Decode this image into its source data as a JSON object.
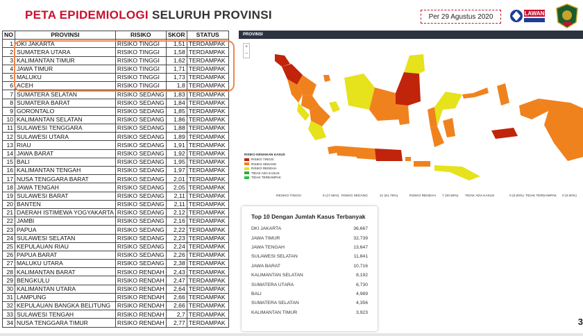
{
  "header": {
    "title_red": "PETA EPIDEMIOLOGI",
    "title_dark": "SELURUH PROVINSI",
    "date": "Per 29 Agustus 2020",
    "logo_text": "LAWAN"
  },
  "table": {
    "headers": [
      "NO",
      "PROVINSI",
      "RISIKO",
      "SKOR",
      "STATUS"
    ],
    "rows": [
      [
        "1",
        "DKI JAKARTA",
        "RISIKO TINGGI",
        "1,51",
        "TERDAMPAK"
      ],
      [
        "2",
        "SUMATERA UTARA",
        "RISIKO TINGGI",
        "1,58",
        "TERDAMPAK"
      ],
      [
        "3",
        "KALIMANTAN TIMUR",
        "RISIKO TINGGI",
        "1,62",
        "TERDAMPAK"
      ],
      [
        "4",
        "JAWA TIMUR",
        "RISIKO TINGGI",
        "1,71",
        "TERDAMPAK"
      ],
      [
        "5",
        "MALUKU",
        "RISIKO TINGGI",
        "1,73",
        "TERDAMPAK"
      ],
      [
        "6",
        "ACEH",
        "RISIKO TINGGI",
        "1,8",
        "TERDAMPAK"
      ],
      [
        "7",
        "SUMATERA SELATAN",
        "RISIKO SEDANG",
        "1,83",
        "TERDAMPAK"
      ],
      [
        "8",
        "SUMATERA BARAT",
        "RISIKO SEDANG",
        "1,84",
        "TERDAMPAK"
      ],
      [
        "9",
        "GORONTALO",
        "RISIKO SEDANG",
        "1,85",
        "TERDAMPAK"
      ],
      [
        "10",
        "KALIMANTAN SELATAN",
        "RISIKO SEDANG",
        "1,86",
        "TERDAMPAK"
      ],
      [
        "11",
        "SULAWESI TENGGARA",
        "RISIKO SEDANG",
        "1,88",
        "TERDAMPAK"
      ],
      [
        "12",
        "SULAWESI UTARA",
        "RISIKO SEDANG",
        "1,89",
        "TERDAMPAK"
      ],
      [
        "13",
        "RIAU",
        "RISIKO SEDANG",
        "1,91",
        "TERDAMPAK"
      ],
      [
        "14",
        "JAWA BARAT",
        "RISIKO SEDANG",
        "1,92",
        "TERDAMPAK"
      ],
      [
        "15",
        "BALI",
        "RISIKO SEDANG",
        "1,95",
        "TERDAMPAK"
      ],
      [
        "16",
        "KALIMANTAN TENGAH",
        "RISIKO SEDANG",
        "1,97",
        "TERDAMPAK"
      ],
      [
        "17",
        "NUSA TENGGARA BARAT",
        "RISIKO SEDANG",
        "2,01",
        "TERDAMPAK"
      ],
      [
        "18",
        "JAWA TENGAH",
        "RISIKO SEDANG",
        "2,05",
        "TERDAMPAK"
      ],
      [
        "19",
        "SULAWESI BARAT",
        "RISIKO SEDANG",
        "2,11",
        "TERDAMPAK"
      ],
      [
        "20",
        "BANTEN",
        "RISIKO SEDANG",
        "2,11",
        "TERDAMPAK"
      ],
      [
        "21",
        "DAERAH ISTIMEWA YOGYAKARTA",
        "RISIKO SEDANG",
        "2,12",
        "TERDAMPAK"
      ],
      [
        "22",
        "JAMBI",
        "RISIKO SEDANG",
        "2,16",
        "TERDAMPAK"
      ],
      [
        "23",
        "PAPUA",
        "RISIKO SEDANG",
        "2,22",
        "TERDAMPAK"
      ],
      [
        "24",
        "SULAWESI SELATAN",
        "RISIKO SEDANG",
        "2,23",
        "TERDAMPAK"
      ],
      [
        "25",
        "KEPULAUAN RIAU",
        "RISIKO SEDANG",
        "2,24",
        "TERDAMPAK"
      ],
      [
        "26",
        "PAPUA BARAT",
        "RISIKO SEDANG",
        "2,26",
        "TERDAMPAK"
      ],
      [
        "27",
        "MALUKU UTARA",
        "RISIKO SEDANG",
        "2,38",
        "TERDAMPAK"
      ],
      [
        "28",
        "KALIMANTAN BARAT",
        "RISIKO RENDAH",
        "2,43",
        "TERDAMPAK"
      ],
      [
        "29",
        "BENGKULU",
        "RISIKO RENDAH",
        "2,47",
        "TERDAMPAK"
      ],
      [
        "30",
        "KALIMANTAN UTARA",
        "RISIKO RENDAH",
        "2,64",
        "TERDAMPAK"
      ],
      [
        "31",
        "LAMPUNG",
        "RISIKO RENDAH",
        "2,66",
        "TERDAMPAK"
      ],
      [
        "32",
        "KEPULAUAN BANGKA BELITUNG",
        "RISIKO RENDAH",
        "2,66",
        "TERDAMPAK"
      ],
      [
        "33",
        "SULAWESI TENGAH",
        "RISIKO RENDAH",
        "2,7",
        "TERDAMPAK"
      ],
      [
        "34",
        "NUSA TENGGARA TIMUR",
        "RISIKO RENDAH",
        "2,77",
        "TERDAMPAK"
      ]
    ]
  },
  "map": {
    "header": "PROVINSI",
    "legend_title": "RISIKO KENAIKAN KASUS",
    "legend": [
      {
        "label": "RISIKO TINGGI",
        "color": "#c0240a"
      },
      {
        "label": "RISIKO SEDANG",
        "color": "#f0821e"
      },
      {
        "label": "RISIKO RENDAH",
        "color": "#e6e21c"
      },
      {
        "label": "TIDAK ADA KASUS",
        "color": "#2eaa3c"
      },
      {
        "label": "TIDAK TERDAMPAK",
        "color": "#2fbf4a"
      }
    ],
    "summary": [
      {
        "label": "RESIKO TINGGI",
        "value": "6 (17.65%)"
      },
      {
        "label": "RISIKO SEDANG",
        "value": "21 (61.76%)"
      },
      {
        "label": "RISIKO RENDAH",
        "value": "7 (20.59%)"
      },
      {
        "label": "TIDAK ADA KASUS",
        "value": "0 (0.00%)"
      },
      {
        "label": "TIDAK TERDAMPAK",
        "value": "0 (0.00%)"
      }
    ]
  },
  "top10": {
    "title": "Top 10 Dengan Jumlah Kasus Terbanyak",
    "rows": [
      {
        "name": "DKI JAKARTA",
        "value": "36,667"
      },
      {
        "name": "JAWA TIMUR",
        "value": "32,739"
      },
      {
        "name": "JAWA TENGAH",
        "value": "13,647"
      },
      {
        "name": "SULAWESI SELATAN",
        "value": "11,841"
      },
      {
        "name": "JAWA BARAT",
        "value": "10,716"
      },
      {
        "name": "KALIMANTAN SELATAN",
        "value": "8,192"
      },
      {
        "name": "SUMATERA UTARA",
        "value": "6,730"
      },
      {
        "name": "BALI",
        "value": "4,989"
      },
      {
        "name": "SUMATERA SELATAN",
        "value": "4,356"
      },
      {
        "name": "KALIMANTAN TIMUR",
        "value": "3,923"
      }
    ]
  },
  "page_number": "3"
}
